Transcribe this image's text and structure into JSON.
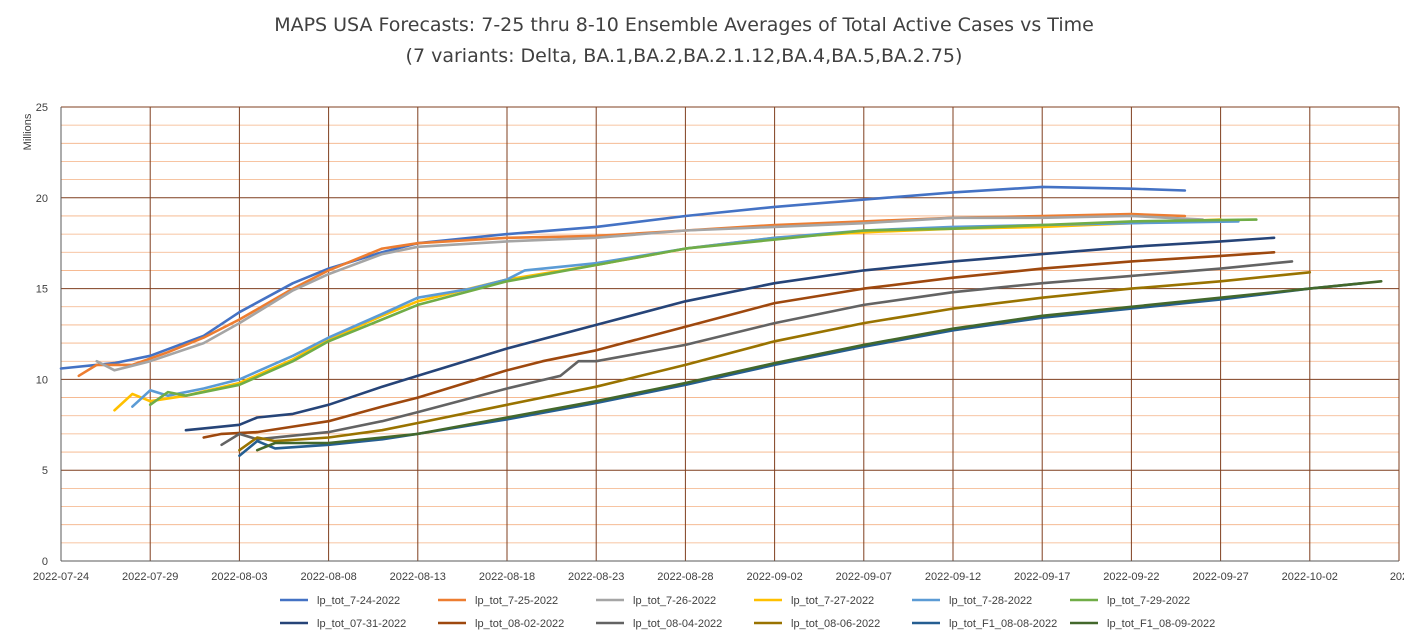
{
  "chart_data": {
    "type": "line",
    "title": "MAPS USA Forecasts: 7-25 thru 8-10 Ensemble Averages of Total Active Cases vs Time",
    "subtitle": "(7 variants: Delta, BA.1,BA.2,BA.2.1.12,BA.4,BA.5,BA.2.75)",
    "ylabel": "Millions",
    "xlabel": "",
    "ylim": [
      0,
      25
    ],
    "y_ticks": [
      "0",
      "5",
      "10",
      "15",
      "20",
      "25"
    ],
    "xlim": [
      "2022-07-24",
      "2022-10-07"
    ],
    "x_ticks": [
      "2022-07-24",
      "2022-07-29",
      "2022-08-03",
      "2022-08-08",
      "2022-08-13",
      "2022-08-18",
      "2022-08-23",
      "2022-08-28",
      "2022-09-02",
      "2022-09-07",
      "2022-09-12",
      "2022-09-17",
      "2022-09-22",
      "2022-09-27",
      "2022-10-02",
      "202"
    ],
    "grid": true,
    "legend_position": "bottom",
    "series": [
      {
        "name": "lp_tot_7-24-2022",
        "color": "#4472c4",
        "x": [
          "2022-07-24",
          "2022-07-27",
          "2022-07-29",
          "2022-08-01",
          "2022-08-03",
          "2022-08-06",
          "2022-08-08",
          "2022-08-11",
          "2022-08-13",
          "2022-08-18",
          "2022-08-23",
          "2022-08-28",
          "2022-09-02",
          "2022-09-07",
          "2022-09-12",
          "2022-09-17",
          "2022-09-22",
          "2022-09-25"
        ],
        "values": [
          10.6,
          10.9,
          11.3,
          12.4,
          13.7,
          15.3,
          16.1,
          17.0,
          17.5,
          18.0,
          18.4,
          19.0,
          19.5,
          19.9,
          20.3,
          20.6,
          20.5,
          20.4
        ]
      },
      {
        "name": "lp_tot_7-25-2022",
        "color": "#ed7d31",
        "x": [
          "2022-07-25",
          "2022-07-26",
          "2022-07-28",
          "2022-07-30",
          "2022-08-01",
          "2022-08-03",
          "2022-08-06",
          "2022-08-08",
          "2022-08-11",
          "2022-08-13",
          "2022-08-18",
          "2022-08-23",
          "2022-08-28",
          "2022-09-02",
          "2022-09-07",
          "2022-09-12",
          "2022-09-17",
          "2022-09-22",
          "2022-09-25"
        ],
        "values": [
          10.2,
          10.8,
          10.8,
          11.5,
          12.3,
          13.3,
          15.0,
          16.0,
          17.2,
          17.5,
          17.8,
          17.9,
          18.2,
          18.5,
          18.7,
          18.9,
          19.0,
          19.1,
          19.0
        ]
      },
      {
        "name": "lp_tot_7-26-2022",
        "color": "#a5a5a5",
        "x": [
          "2022-07-26",
          "2022-07-27",
          "2022-07-29",
          "2022-08-01",
          "2022-08-03",
          "2022-08-06",
          "2022-08-08",
          "2022-08-11",
          "2022-08-13",
          "2022-08-18",
          "2022-08-23",
          "2022-08-28",
          "2022-09-02",
          "2022-09-07",
          "2022-09-12",
          "2022-09-17",
          "2022-09-22",
          "2022-09-26"
        ],
        "values": [
          11.0,
          10.5,
          11.0,
          12.0,
          13.1,
          14.9,
          15.8,
          16.9,
          17.3,
          17.6,
          17.8,
          18.2,
          18.4,
          18.6,
          18.9,
          18.9,
          19.0,
          18.8
        ]
      },
      {
        "name": "lp_tot_7-27-2022",
        "color": "#ffc000",
        "x": [
          "2022-07-27",
          "2022-07-28",
          "2022-07-29",
          "2022-07-31",
          "2022-08-03",
          "2022-08-06",
          "2022-08-08",
          "2022-08-11",
          "2022-08-13",
          "2022-08-18",
          "2022-08-23",
          "2022-08-28",
          "2022-09-02",
          "2022-09-07",
          "2022-09-12",
          "2022-09-17",
          "2022-09-22",
          "2022-09-27"
        ],
        "values": [
          8.3,
          9.2,
          8.8,
          9.1,
          9.8,
          11.1,
          12.2,
          13.5,
          14.3,
          15.5,
          16.3,
          17.2,
          17.8,
          18.1,
          18.3,
          18.4,
          18.6,
          18.8
        ]
      },
      {
        "name": "lp_tot_7-28-2022",
        "color": "#5b9bd5",
        "x": [
          "2022-07-28",
          "2022-07-29",
          "2022-07-30",
          "2022-08-01",
          "2022-08-03",
          "2022-08-06",
          "2022-08-08",
          "2022-08-11",
          "2022-08-13",
          "2022-08-16",
          "2022-08-18",
          "2022-08-19",
          "2022-08-23",
          "2022-08-28",
          "2022-09-02",
          "2022-09-07",
          "2022-09-12",
          "2022-09-17",
          "2022-09-22",
          "2022-09-28"
        ],
        "values": [
          8.5,
          9.4,
          9.1,
          9.5,
          10.0,
          11.3,
          12.3,
          13.6,
          14.5,
          15.0,
          15.5,
          16.0,
          16.4,
          17.2,
          17.8,
          18.2,
          18.4,
          18.5,
          18.6,
          18.7
        ]
      },
      {
        "name": "lp_tot_7-29-2022",
        "color": "#70ad47",
        "x": [
          "2022-07-29",
          "2022-07-30",
          "2022-07-31",
          "2022-08-03",
          "2022-08-06",
          "2022-08-08",
          "2022-08-11",
          "2022-08-13",
          "2022-08-18",
          "2022-08-23",
          "2022-08-28",
          "2022-09-02",
          "2022-09-07",
          "2022-09-12",
          "2022-09-17",
          "2022-09-22",
          "2022-09-29"
        ],
        "values": [
          8.6,
          9.3,
          9.1,
          9.7,
          11.0,
          12.1,
          13.3,
          14.1,
          15.4,
          16.3,
          17.2,
          17.7,
          18.2,
          18.3,
          18.5,
          18.7,
          18.8
        ]
      },
      {
        "name": "lp_tot_07-31-2022",
        "color": "#264478",
        "x": [
          "2022-07-31",
          "2022-08-01",
          "2022-08-03",
          "2022-08-04",
          "2022-08-06",
          "2022-08-08",
          "2022-08-11",
          "2022-08-13",
          "2022-08-18",
          "2022-08-23",
          "2022-08-28",
          "2022-09-02",
          "2022-09-07",
          "2022-09-12",
          "2022-09-17",
          "2022-09-22",
          "2022-09-27",
          "2022-09-30"
        ],
        "values": [
          7.2,
          7.3,
          7.5,
          7.9,
          8.1,
          8.6,
          9.6,
          10.2,
          11.7,
          13.0,
          14.3,
          15.3,
          16.0,
          16.5,
          16.9,
          17.3,
          17.6,
          17.8
        ]
      },
      {
        "name": "lp_tot_08-02-2022",
        "color": "#9e480e",
        "x": [
          "2022-08-01",
          "2022-08-02",
          "2022-08-04",
          "2022-08-06",
          "2022-08-08",
          "2022-08-11",
          "2022-08-13",
          "2022-08-18",
          "2022-08-20",
          "2022-08-23",
          "2022-08-28",
          "2022-09-02",
          "2022-09-07",
          "2022-09-12",
          "2022-09-17",
          "2022-09-22",
          "2022-09-27",
          "2022-09-30"
        ],
        "values": [
          6.8,
          7.0,
          7.1,
          7.4,
          7.7,
          8.5,
          9.0,
          10.5,
          11.0,
          11.6,
          12.9,
          14.2,
          15.0,
          15.6,
          16.1,
          16.5,
          16.8,
          17.0
        ]
      },
      {
        "name": "lp_tot_08-04-2022",
        "color": "#636363",
        "x": [
          "2022-08-02",
          "2022-08-03",
          "2022-08-04",
          "2022-08-06",
          "2022-08-08",
          "2022-08-11",
          "2022-08-13",
          "2022-08-18",
          "2022-08-21",
          "2022-08-22",
          "2022-08-23",
          "2022-08-28",
          "2022-09-02",
          "2022-09-07",
          "2022-09-12",
          "2022-09-17",
          "2022-09-22",
          "2022-09-27",
          "2022-10-01"
        ],
        "values": [
          6.4,
          7.0,
          6.7,
          6.9,
          7.1,
          7.7,
          8.2,
          9.5,
          10.2,
          11.0,
          11.0,
          11.9,
          13.1,
          14.1,
          14.8,
          15.3,
          15.7,
          16.1,
          16.5
        ]
      },
      {
        "name": "lp_tot_08-06-2022",
        "color": "#997300",
        "x": [
          "2022-08-03",
          "2022-08-04",
          "2022-08-05",
          "2022-08-08",
          "2022-08-11",
          "2022-08-13",
          "2022-08-18",
          "2022-08-23",
          "2022-08-28",
          "2022-09-02",
          "2022-09-07",
          "2022-09-12",
          "2022-09-17",
          "2022-09-22",
          "2022-09-27",
          "2022-10-02"
        ],
        "values": [
          6.1,
          6.8,
          6.6,
          6.8,
          7.2,
          7.6,
          8.6,
          9.6,
          10.8,
          12.1,
          13.1,
          13.9,
          14.5,
          15.0,
          15.4,
          15.9
        ]
      },
      {
        "name": "lp_tot_F1_08-08-2022",
        "color": "#255e91",
        "x": [
          "2022-08-03",
          "2022-08-04",
          "2022-08-05",
          "2022-08-08",
          "2022-08-11",
          "2022-08-13",
          "2022-08-18",
          "2022-08-23",
          "2022-08-28",
          "2022-09-02",
          "2022-09-07",
          "2022-09-12",
          "2022-09-17",
          "2022-09-22",
          "2022-09-27",
          "2022-10-02",
          "2022-10-05"
        ],
        "values": [
          5.8,
          6.6,
          6.2,
          6.4,
          6.7,
          7.0,
          7.8,
          8.7,
          9.7,
          10.8,
          11.8,
          12.7,
          13.4,
          13.9,
          14.4,
          15.0,
          15.3
        ]
      },
      {
        "name": "lp_tot_F1_08-09-2022",
        "color": "#43682b",
        "x": [
          "2022-08-04",
          "2022-08-05",
          "2022-08-08",
          "2022-08-11",
          "2022-08-13",
          "2022-08-18",
          "2022-08-23",
          "2022-08-28",
          "2022-09-02",
          "2022-09-07",
          "2022-09-12",
          "2022-09-17",
          "2022-09-22",
          "2022-09-27",
          "2022-10-02",
          "2022-10-06"
        ],
        "values": [
          6.1,
          6.5,
          6.5,
          6.8,
          7.0,
          7.9,
          8.8,
          9.8,
          10.9,
          11.9,
          12.8,
          13.5,
          14.0,
          14.5,
          15.0,
          15.4
        ]
      }
    ]
  }
}
